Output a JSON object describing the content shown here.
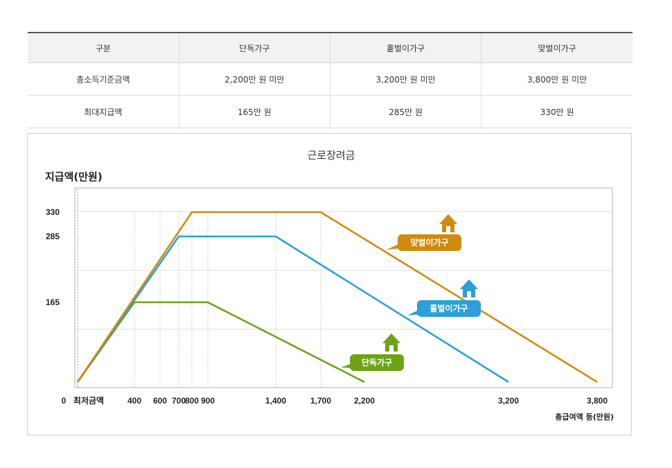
{
  "table": {
    "headers": [
      "구분",
      "단독가구",
      "홑벌이가구",
      "맞벌이가구"
    ],
    "rows": [
      [
        "총소득기준금액",
        "2,200만 원 미만",
        "3,200만 원 미만",
        "3,800만 원 미만"
      ],
      [
        "최대지급액",
        "165만 원",
        "285만 원",
        "330만 원"
      ]
    ]
  },
  "chart_data": {
    "type": "line",
    "title": "근로장려금",
    "ylabel": "지급액(만원)",
    "xlabel": "총급여액 등(만원)",
    "origin_label": "0",
    "min_wage_label": "최저금액",
    "x_ticks": [
      400,
      600,
      700,
      800,
      900,
      1400,
      1700,
      2200,
      3200,
      3800
    ],
    "x_tick_labels": [
      "400",
      "600",
      "700",
      "800",
      "900",
      "1,400",
      "1,700",
      "2,200",
      "3,200",
      "3,800"
    ],
    "y_ticks": [
      165,
      285,
      330
    ],
    "y_tick_labels": [
      "165",
      "285",
      "330"
    ],
    "series": [
      {
        "name": "단독가구",
        "color": "#6ea317",
        "points": [
          [
            0,
            0
          ],
          [
            400,
            165
          ],
          [
            900,
            165
          ],
          [
            2200,
            0
          ]
        ]
      },
      {
        "name": "홑벌이가구",
        "color": "#2b9fd8",
        "points": [
          [
            0,
            0
          ],
          [
            700,
            285
          ],
          [
            1400,
            285
          ],
          [
            3200,
            0
          ]
        ]
      },
      {
        "name": "맞벌이가구",
        "color": "#d08a0f",
        "points": [
          [
            0,
            0
          ],
          [
            800,
            330
          ],
          [
            1700,
            330
          ],
          [
            3800,
            0
          ]
        ]
      }
    ],
    "grid": true
  }
}
